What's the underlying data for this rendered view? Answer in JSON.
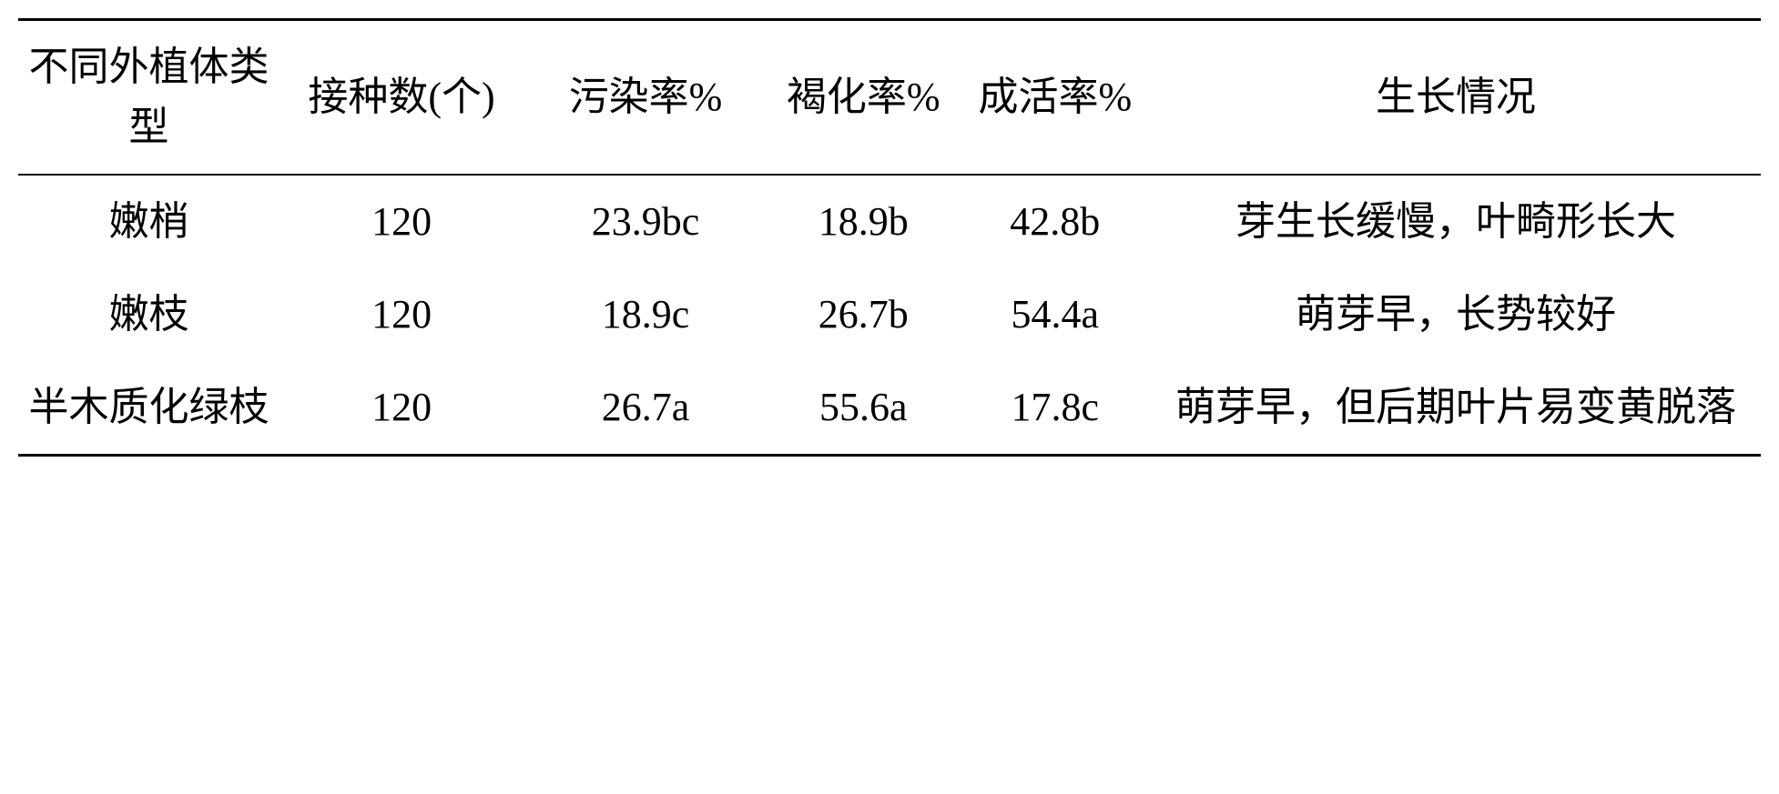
{
  "table": {
    "columns": [
      "不同外植体类型",
      "接种数(个)",
      "污染率%",
      "褐化率%",
      "成活率%",
      "生长情况"
    ],
    "rows": [
      {
        "explant_type": "嫩梢",
        "inoculation_count": "120",
        "contamination_rate": "23.9bc",
        "browning_rate": "18.9b",
        "survival_rate": "42.8b",
        "growth_status": "芽生长缓慢，叶畸形长大"
      },
      {
        "explant_type": "嫩枝",
        "inoculation_count": "120",
        "contamination_rate": "18.9c",
        "browning_rate": "26.7b",
        "survival_rate": "54.4a",
        "growth_status": "萌芽早，长势较好"
      },
      {
        "explant_type": "半木质化绿枝",
        "inoculation_count": "120",
        "contamination_rate": "26.7a",
        "browning_rate": "55.6a",
        "survival_rate": "17.8c",
        "growth_status": "萌芽早，但后期叶片易变黄脱落"
      }
    ],
    "styling": {
      "font_family": "SimSun/STSong serif",
      "font_size": 44,
      "text_color": "#000000",
      "background_color": "#ffffff",
      "border_top_width": 3,
      "border_header_bottom_width": 2,
      "border_bottom_width": 3,
      "border_color": "#000000",
      "column_widths_percent": [
        15,
        14,
        14,
        11,
        11,
        35
      ],
      "text_align": "center",
      "line_height": 1.5,
      "cell_padding_vertical": 18,
      "cell_padding_horizontal": 8
    }
  }
}
